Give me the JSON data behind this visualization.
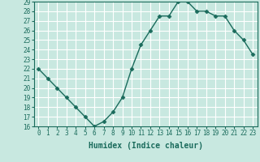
{
  "x": [
    0,
    1,
    2,
    3,
    4,
    5,
    6,
    7,
    8,
    9,
    10,
    11,
    12,
    13,
    14,
    15,
    16,
    17,
    18,
    19,
    20,
    21,
    22,
    23
  ],
  "y": [
    22,
    21,
    20,
    19,
    18,
    17,
    16,
    16.5,
    17.5,
    19,
    22,
    24.5,
    26,
    27.5,
    27.5,
    29,
    29,
    28,
    28,
    27.5,
    27.5,
    26,
    25,
    23.5
  ],
  "xlabel": "Humidex (Indice chaleur)",
  "xlim": [
    -0.5,
    23.5
  ],
  "ylim": [
    16,
    29
  ],
  "yticks": [
    16,
    17,
    18,
    19,
    20,
    21,
    22,
    23,
    24,
    25,
    26,
    27,
    28,
    29
  ],
  "xticks": [
    0,
    1,
    2,
    3,
    4,
    5,
    6,
    7,
    8,
    9,
    10,
    11,
    12,
    13,
    14,
    15,
    16,
    17,
    18,
    19,
    20,
    21,
    22,
    23
  ],
  "line_color": "#1a6b5c",
  "marker_color": "#1a6b5c",
  "bg_color": "#c8e8e0",
  "grid_color": "#ffffff",
  "tick_color": "#1a6b5c",
  "xlabel_color": "#1a6b5c",
  "tick_fontsize": 5.5,
  "xlabel_fontsize": 7.0,
  "linewidth": 1.0,
  "markersize": 2.5
}
